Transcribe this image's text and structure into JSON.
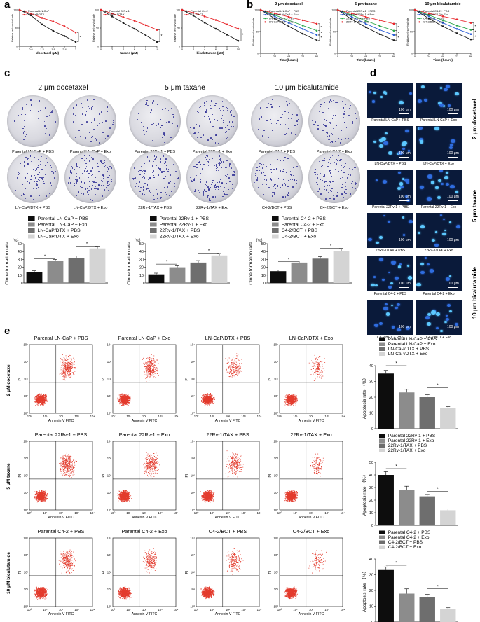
{
  "panel_labels": {
    "a": "a",
    "b": "b",
    "c": "c",
    "d": "d",
    "e": "e"
  },
  "a": {
    "plots": [
      {
        "ylabel": "Relative cell survival rate",
        "xlabel": "docetaxel (μM)",
        "ticks": [
          "0",
          "0.6",
          "1.2",
          "1.8",
          "2.4",
          "3"
        ],
        "legend": [
          "Parental LN-CaP",
          "LN-CaP/DTX"
        ],
        "chart_data": {
          "type": "line",
          "x": [
            0,
            0.6,
            1.2,
            1.8,
            2.4,
            3
          ],
          "series": [
            {
              "name": "Parental LN-CaP",
              "values": [
                100,
                85,
                60,
                42,
                28,
                12
              ]
            },
            {
              "name": "LN-CaP/DTX",
              "values": [
                100,
                90,
                78,
                68,
                55,
                38
              ]
            }
          ]
        }
      },
      {
        "ylabel": "Relative cell survival rate",
        "xlabel": "taxane (μM)",
        "ticks": [
          "0",
          "2",
          "4",
          "6",
          "8",
          "10"
        ],
        "legend": [
          "Parental 22Rv-1",
          "22Rv-1/TAX"
        ],
        "chart_data": {
          "type": "line",
          "x": [
            0,
            2,
            4,
            6,
            8,
            10
          ],
          "series": [
            {
              "name": "Parental 22Rv-1",
              "values": [
                100,
                82,
                64,
                48,
                30,
                12
              ]
            },
            {
              "name": "22Rv-1/TAX",
              "values": [
                100,
                90,
                80,
                70,
                58,
                45
              ]
            }
          ]
        }
      },
      {
        "ylabel": "Relative cell survival rate",
        "xlabel": "bicalutamide (μM)",
        "ticks": [
          "0",
          "2",
          "4",
          "6",
          "8",
          "10"
        ],
        "legend": [
          "Parental C4-2",
          "C4-2/BCT"
        ],
        "chart_data": {
          "type": "line",
          "x": [
            0,
            2,
            4,
            6,
            8,
            10
          ],
          "series": [
            {
              "name": "Parental C4-2",
              "values": [
                100,
                84,
                65,
                48,
                32,
                15
              ]
            },
            {
              "name": "C4-2/BCT",
              "values": [
                100,
                92,
                82,
                72,
                60,
                48
              ]
            }
          ]
        }
      }
    ]
  },
  "b": {
    "plots": [
      {
        "title": "2 μm docetaxel",
        "ylabel": "Relative cell survival rate",
        "xlabel": "Time(hours)",
        "ticks": [
          "0",
          "24",
          "48",
          "72",
          "96"
        ],
        "legend": [
          "Parental LN-CaP + PBS",
          "Parental LN-CaP + Exo",
          "LN-CaP/DTX + PBS",
          "LN-CaP/DTX + Exo"
        ],
        "chart_data": {
          "type": "line",
          "x": [
            0,
            24,
            48,
            72,
            96
          ],
          "series": [
            {
              "name": "Parental LN-CaP + PBS",
              "values": [
                100,
                80,
                62,
                45,
                30
              ]
            },
            {
              "name": "Parental LN-CaP + Exo",
              "values": [
                100,
                85,
                70,
                56,
                42
              ]
            },
            {
              "name": "LN-CaP/DTX + PBS",
              "values": [
                100,
                88,
                76,
                64,
                52
              ]
            },
            {
              "name": "LN-CaP/DTX + Exo",
              "values": [
                100,
                92,
                84,
                76,
                68
              ]
            }
          ]
        }
      },
      {
        "title": "5 μm taxane",
        "ylabel": "Relative cell survival rate",
        "xlabel": "Time(hours)",
        "ticks": [
          "0",
          "24",
          "48",
          "72",
          "96"
        ],
        "legend": [
          "Parental 22Rv-1 + PBS",
          "Parental 22Rv-1 + Exo",
          "22Rv-1/TAX + PBS",
          "22Rv-1/TAX + Exo"
        ],
        "chart_data": {
          "type": "line",
          "x": [
            0,
            24,
            48,
            72,
            96
          ],
          "series": [
            {
              "name": "Parental 22Rv-1 + PBS",
              "values": [
                100,
                78,
                60,
                44,
                30
              ]
            },
            {
              "name": "Parental 22Rv-1 + Exo",
              "values": [
                100,
                84,
                68,
                54,
                42
              ]
            },
            {
              "name": "22Rv-1/TAX + PBS",
              "values": [
                100,
                88,
                75,
                63,
                52
              ]
            },
            {
              "name": "22Rv-1/TAX + Exo",
              "values": [
                100,
                92,
                84,
                76,
                68
              ]
            }
          ]
        }
      },
      {
        "title": "10 μm bicalutamide",
        "ylabel": "Relative cell survival rate",
        "xlabel": "Time (hours)",
        "ticks": [
          "0",
          "24",
          "48",
          "72",
          "96"
        ],
        "legend": [
          "Parental C4-2 + PBS",
          "Parental C4-2 + Exo",
          "C4-2/BCT + PBS",
          "C4-2/BCT + Exo"
        ],
        "chart_data": {
          "type": "line",
          "x": [
            0,
            24,
            48,
            72,
            96
          ],
          "series": [
            {
              "name": "Parental C4-2 + PBS",
              "values": [
                100,
                80,
                62,
                46,
                32
              ]
            },
            {
              "name": "Parental C4-2 + Exo",
              "values": [
                100,
                85,
                70,
                56,
                44
              ]
            },
            {
              "name": "C4-2/BCT + PBS",
              "values": [
                100,
                88,
                76,
                64,
                54
              ]
            },
            {
              "name": "C4-2/BCT + Exo",
              "values": [
                100,
                92,
                85,
                78,
                70
              ]
            }
          ]
        }
      }
    ]
  },
  "c": {
    "groups": [
      {
        "title": "2 μm docetaxel",
        "plates": [
          "Parental LN-CaP + PBS",
          "Parental LN-CaP + Exo",
          "LN-CaP/DTX + PBS",
          "LN-CaP/DTX + Exo"
        ],
        "legend": [
          "Parental LN-CaP + PBS",
          "Parental LN-CaP + Exo",
          "LN-CaP/DTX + PBS",
          "LN-CaP/DTX + Exo"
        ],
        "ylabel": "Clone formation rate",
        "unit": "（%）",
        "yticks": [
          "0",
          "10",
          "20",
          "30",
          "40",
          "50"
        ],
        "chart_data": {
          "type": "bar",
          "categories": [
            "Parental LN-CaP + PBS",
            "Parental LN-CaP + Exo",
            "LN-CaP/DTX + PBS",
            "LN-CaP/DTX + Exo"
          ],
          "values": [
            14,
            28,
            32,
            44
          ],
          "errors": [
            1.5,
            2,
            2.5,
            3
          ],
          "ylim": [
            0,
            50
          ]
        }
      },
      {
        "title": "5 μm taxane",
        "plates": [
          "Parental 22Rv-1 + PBS",
          "Parental 22Rv-1 + Exo",
          "22Rv-1/TAX + PBS",
          "22Rv-1/TAX + Exo"
        ],
        "legend": [
          "Parental 22Rv-1 + PBS",
          "Parental 22Rv-1 + Exo",
          "22Rv-1/TAX + PBS",
          "22Rv-1/TAX + Exo"
        ],
        "ylabel": "Clone formation rate",
        "unit": "（%）",
        "yticks": [
          "0",
          "10",
          "20",
          "30",
          "40",
          "50"
        ],
        "chart_data": {
          "type": "bar",
          "categories": [
            "Parental 22Rv-1 + PBS",
            "Parental 22Rv-1 + Exo",
            "22Rv-1/TAX + PBS",
            "22Rv-1/TAX + Exo"
          ],
          "values": [
            11,
            20,
            26,
            35
          ],
          "errors": [
            1.5,
            2,
            2.5,
            2.5
          ],
          "ylim": [
            0,
            50
          ]
        }
      },
      {
        "title": "10 μm bicalutamide",
        "plates": [
          "Parental C4-2 + PBS",
          "Parental C4-2 + Exo",
          "C4-2/BCT + PBS",
          "C4-2/BCT + Exo"
        ],
        "legend": [
          "Parental C4-2 + PBS",
          "Parental C4-2 + Exo",
          "C4-2/BCT + PBS",
          "C4-2/BCT + Exo"
        ],
        "ylabel": "Clone formation rate",
        "unit": "（%）",
        "yticks": [
          "0",
          "10",
          "20",
          "30",
          "40",
          "50"
        ],
        "chart_data": {
          "type": "bar",
          "categories": [
            "Parental C4-2 + PBS",
            "Parental C4-2 + Exo",
            "C4-2/BCT + PBS",
            "C4-2/BCT + Exo"
          ],
          "values": [
            15,
            26,
            31,
            41
          ],
          "errors": [
            1.5,
            2,
            2.5,
            3
          ],
          "ylim": [
            0,
            50
          ]
        }
      }
    ],
    "sig": "*"
  },
  "d": {
    "rows": [
      {
        "group": "2 μm docetaxel",
        "captions": [
          "Parental LN-CaP + PBS",
          "Parental LN-CaP + Exo",
          "LN-CaP/DTX + PBS",
          "LN-CaP/DTX + Exo"
        ]
      },
      {
        "group": "5 μm taxane",
        "captions": [
          "Parental 22Rv-1 + PBS",
          "Parental 22Rv-1 + Exo",
          "22Rv-1/TAX + PBS",
          "22Rv-1/TAX + Exo"
        ]
      },
      {
        "group": "10 μm bicalutamide",
        "captions": [
          "Parental C4-2 + PBS",
          "Parental C4-2 + Exo",
          "C4-2/BCT + PBS",
          "C4-2/BCT + Exo"
        ]
      }
    ],
    "scale": "100 μm"
  },
  "e": {
    "rows": [
      {
        "group": "2 μM docetaxel",
        "titles": [
          "Parental LN-CaP + PBS",
          "Parental LN-CaP + Exo",
          "LN-CaP/DTX + PBS",
          "LN-CaP/DTX + Exo"
        ],
        "legend": [
          "Parental LN-CaP + PBS",
          "Parental LN-CaP + Exo",
          "LN-CaP/DTX + PBS",
          "LN-CaP/DTX + Exo"
        ],
        "chart_data": {
          "type": "bar",
          "categories": [
            "Parental LN-CaP + PBS",
            "Parental LN-CaP + Exo",
            "LN-CaP/DTX + PBS",
            "LN-CaP/DTX + Exo"
          ],
          "values": [
            35,
            23,
            20,
            13
          ],
          "errors": [
            2,
            2,
            1.5,
            1
          ],
          "ylim": [
            0,
            40
          ]
        }
      },
      {
        "group": "5 μM taxane",
        "titles": [
          "Parental 22Rv-1 + PBS",
          "Parental 22Rv-1 + Exo",
          "22Rv-1/TAX + PBS",
          "22Rv-1/TAX + Exo"
        ],
        "legend": [
          "Parental 22Rv-1 + PBS",
          "Parental 22Rv-1 + Exo",
          "22Rv-1/TAX + PBS",
          "22Rv-1/TAX + Exo"
        ],
        "chart_data": {
          "type": "bar",
          "categories": [
            "Parental 22Rv-1 + PBS",
            "Parental 22Rv-1 + Exo",
            "22Rv-1/TAX + PBS",
            "22Rv-1/TAX + Exo"
          ],
          "values": [
            40,
            28,
            23,
            12
          ],
          "errors": [
            2.5,
            3,
            1.5,
            1
          ],
          "ylim": [
            0,
            50
          ]
        }
      },
      {
        "group": "10 μM bicalutamide",
        "titles": [
          "Parental C4-2 + PBS",
          "Parental C4-2 + Exo",
          "C4-2/BCT + PBS",
          "C4-2/BCT + Exo"
        ],
        "legend": [
          "Parental C4-2 + PBS",
          "Parental C4-2 + Exo",
          "C4-2/BCT + PBS",
          "C4-2/BCT + Exo"
        ],
        "chart_data": {
          "type": "bar",
          "categories": [
            "Parental C4-2 + PBS",
            "Parental C4-2 + Exo",
            "C4-2/BCT + PBS",
            "C4-2/BCT + Exo"
          ],
          "values": [
            33,
            18,
            16,
            8
          ],
          "errors": [
            2,
            3,
            1.5,
            1
          ],
          "ylim": [
            0,
            40
          ]
        }
      }
    ],
    "xlabel": "Annexin V FITC",
    "ylabel": "PI",
    "apoptosis_label": "Apoptosis rate",
    "apoptosis_unit": "（%）",
    "decades": [
      "10⁰",
      "10¹",
      "10²",
      "10³",
      "10⁴"
    ],
    "sig": "*"
  },
  "colors": {
    "red": "#e8262b",
    "black": "#1a1a1a",
    "green": "#2aa84a",
    "blue": "#2e5fd6",
    "bar1": "#0d0d0d",
    "bar2": "#8c8c8c",
    "bar3": "#6e6e6e",
    "bar4": "#d4d4d4",
    "dot": "#e33a2c",
    "colony": "#3a3a9a"
  }
}
